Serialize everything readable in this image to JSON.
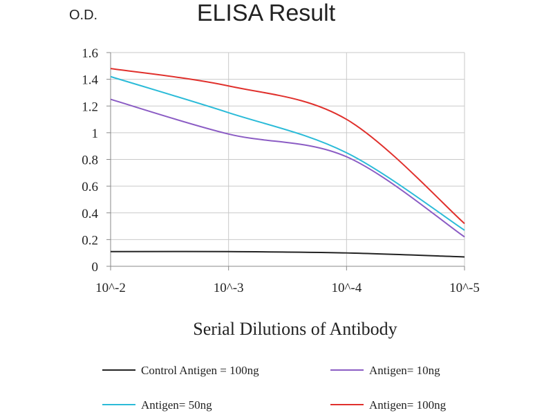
{
  "chart_data": {
    "type": "line",
    "title": "ELISA Result",
    "ylabel": "O.D.",
    "xlabel": "Serial Dilutions of Antibody",
    "x": [
      "10^-2",
      "10^-3",
      "10^-4",
      "10^-5"
    ],
    "ylim": [
      0,
      1.6
    ],
    "yticks": [
      "0",
      "0.2",
      "0.4",
      "0.6",
      "0.8",
      "1",
      "1.2",
      "1.4",
      "1.6"
    ],
    "grid": true,
    "legend_position": "bottom",
    "series": [
      {
        "name": "Control Antigen = 100ng",
        "color": "#222222",
        "values": [
          0.11,
          0.11,
          0.1,
          0.07
        ]
      },
      {
        "name": "Antigen= 10ng",
        "color": "#8b5cc4",
        "values": [
          1.25,
          0.99,
          0.82,
          0.22
        ]
      },
      {
        "name": "Antigen= 50ng",
        "color": "#2bbbd8",
        "values": [
          1.42,
          1.15,
          0.85,
          0.27
        ]
      },
      {
        "name": "Antigen= 100ng",
        "color": "#e0302c",
        "values": [
          1.48,
          1.35,
          1.1,
          0.32
        ]
      }
    ]
  }
}
